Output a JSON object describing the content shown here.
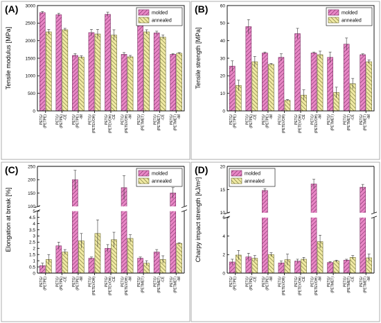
{
  "figure": {
    "colors": {
      "molded_fill": "#e987c6",
      "molded_stroke": "#7a2e63",
      "annealed_fill": "#f0eaa4",
      "annealed_stroke": "#6d6a33",
      "axis": "#000000",
      "panel_border": "#999999"
    }
  },
  "chart_data": [
    {
      "id": "A",
      "letter": "(A)",
      "type": "bar",
      "ylabel": "Tensile modulus [MPa]",
      "ylim": [
        0,
        3000
      ],
      "yticks": [
        0,
        500,
        1000,
        1500,
        2000,
        2500,
        3000
      ],
      "legend": "top-right",
      "categories": [
        [
          "PETG/",
          "(PETPE)"
        ],
        [
          "PETG/",
          "(PETPE)",
          "-CE"
        ],
        [
          "PETG/",
          "(PETPE)",
          "-IM"
        ],
        [
          "PETG/",
          "(PETEVOH)"
        ],
        [
          "PETG/",
          "(PETEVOH)",
          "-CE"
        ],
        [
          "PETG/",
          "(PETEVOH)",
          "-IM"
        ],
        [
          "PETG/",
          "(PETMET)"
        ],
        [
          "PETG/",
          "(PETMET)",
          "-CE"
        ],
        [
          "PETG/",
          "(PETMET)",
          "-IM"
        ]
      ],
      "series": [
        {
          "name": "molded",
          "values": [
            2800,
            2740,
            1580,
            2230,
            2750,
            1610,
            2680,
            2220,
            1610
          ],
          "errors": [
            30,
            40,
            50,
            90,
            60,
            50,
            70,
            50,
            20
          ]
        },
        {
          "name": "annealed",
          "values": [
            2250,
            2310,
            1530,
            2190,
            2160,
            1540,
            2250,
            2100,
            1640
          ],
          "errors": [
            70,
            40,
            40,
            130,
            150,
            40,
            60,
            60,
            20
          ]
        }
      ]
    },
    {
      "id": "B",
      "letter": "(B)",
      "type": "bar",
      "ylabel": "Tensile strength [MPa]",
      "ylim": [
        0,
        60
      ],
      "yticks": [
        0,
        10,
        20,
        30,
        40,
        50,
        60
      ],
      "legend": "top-right",
      "categories": [
        [
          "PETG/",
          "(PETPE)"
        ],
        [
          "PETG/",
          "(PETPE)",
          "-CE"
        ],
        [
          "PETG/",
          "(PETPE)",
          "-IM"
        ],
        [
          "PETG/",
          "(PETEVOH)"
        ],
        [
          "PETG/",
          "(PETEVOH)",
          "-CE"
        ],
        [
          "PETG/",
          "(PETEVOH)",
          "-IM"
        ],
        [
          "PETG/",
          "(PETMET)"
        ],
        [
          "PETG/",
          "(PETMET)",
          "-CE"
        ],
        [
          "PETG/",
          "(PETMET)",
          "-IM"
        ]
      ],
      "series": [
        {
          "name": "molded",
          "values": [
            25.5,
            48,
            33,
            30.5,
            44,
            33,
            30.5,
            38,
            32
          ],
          "errors": [
            3,
            4,
            0.5,
            2,
            3,
            0.5,
            3,
            3.5,
            0.5
          ]
        },
        {
          "name": "annealed",
          "values": [
            14.5,
            28,
            26.5,
            6,
            9,
            32,
            10.5,
            15.5,
            28
          ],
          "errors": [
            3,
            3,
            0.5,
            0.5,
            3,
            2,
            3,
            3,
            1
          ]
        }
      ]
    },
    {
      "id": "C",
      "letter": "(C)",
      "type": "bar",
      "ylabel": "Elongation at break [%]",
      "broken_axis": true,
      "lower_range": [
        0,
        5
      ],
      "upper_range": [
        100,
        250
      ],
      "lower_ticks": [
        0,
        0.5,
        1,
        1.5,
        2,
        2.5,
        3,
        3.5,
        4,
        4.5,
        5
      ],
      "upper_ticks": [
        100,
        150,
        200,
        250
      ],
      "legend": "top-right",
      "categories": [
        [
          "PETG/",
          "(PETPE)"
        ],
        [
          "PETG/",
          "(PETPE)",
          "-CE"
        ],
        [
          "PETG/",
          "(PETPE)",
          "-IM"
        ],
        [
          "PETG/",
          "(PETEVOH)"
        ],
        [
          "PETG/",
          "(PETEVOH)",
          "-CE"
        ],
        [
          "PETG/",
          "(PETEVOH)",
          "-IM"
        ],
        [
          "PETG/",
          "(PETMET)"
        ],
        [
          "PETG/",
          "(PETMET)",
          "-CE"
        ],
        [
          "PETG/",
          "(PETMET)",
          "-IM"
        ]
      ],
      "series": [
        {
          "name": "molded",
          "values": [
            0.6,
            2.2,
            200,
            1.2,
            2.0,
            170,
            1.2,
            1.7,
            150
          ],
          "errors": [
            0.2,
            0.3,
            35,
            0.1,
            0.3,
            45,
            0.1,
            0.2,
            20
          ]
        },
        {
          "name": "annealed",
          "values": [
            1.1,
            1.7,
            2.6,
            3.2,
            2.7,
            2.8,
            0.8,
            1.1,
            2.4
          ],
          "errors": [
            0.4,
            0.2,
            0.6,
            1.1,
            0.6,
            0.3,
            0.2,
            0.3,
            0.05
          ]
        }
      ]
    },
    {
      "id": "D",
      "letter": "(D)",
      "type": "bar",
      "ylabel": "Charpy impact strength [kJ/m²]",
      "broken_axis": true,
      "lower_range": [
        0,
        6
      ],
      "upper_range": [
        10,
        20
      ],
      "lower_ticks": [
        0,
        2,
        4,
        6
      ],
      "upper_ticks": [
        10,
        15,
        20
      ],
      "legend": "top-left",
      "categories": [
        [
          "PETG/",
          "(PETPE)"
        ],
        [
          "PETG/",
          "(PETPE)",
          "-CE"
        ],
        [
          "PETG/",
          "(PETPE)",
          "-IM"
        ],
        [
          "PETG/",
          "(PETEVOH)"
        ],
        [
          "PETG/",
          "(PETEVOH)",
          "-CE"
        ],
        [
          "PETG/",
          "(PETEVOH)",
          "-IM"
        ],
        [
          "PETG/",
          "(PETMET)"
        ],
        [
          "PETG/",
          "(PETMET)",
          "-CE"
        ],
        [
          "PETG/",
          "(PETMET)",
          "-IM"
        ]
      ],
      "series": [
        {
          "name": "molded",
          "values": [
            1.2,
            1.75,
            14.8,
            1.1,
            1.3,
            16.2,
            1.15,
            1.4,
            15.5
          ],
          "errors": [
            0.3,
            0.4,
            0.4,
            0.2,
            0.2,
            1.0,
            0.1,
            0.1,
            0.6
          ]
        },
        {
          "name": "annealed",
          "values": [
            1.95,
            1.6,
            2.0,
            1.45,
            1.5,
            3.4,
            1.3,
            1.7,
            1.65
          ],
          "errors": [
            0.5,
            0.3,
            0.2,
            0.6,
            0.2,
            0.7,
            0.1,
            0.2,
            0.4
          ]
        }
      ]
    }
  ]
}
